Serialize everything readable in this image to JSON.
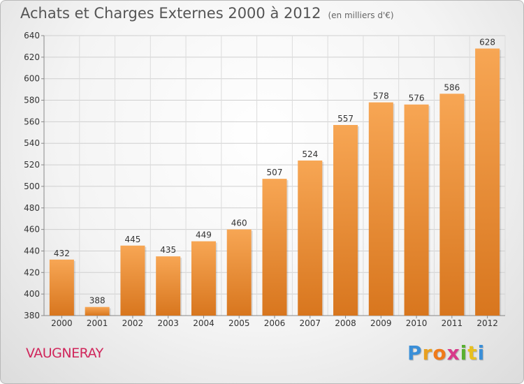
{
  "chart_data": {
    "type": "bar",
    "title": "Achats et Charges Externes 2000 à 2012",
    "subtitle": "(en milliers d'€)",
    "categories": [
      "2000",
      "2001",
      "2002",
      "2003",
      "2004",
      "2005",
      "2006",
      "2007",
      "2008",
      "2009",
      "2010",
      "2011",
      "2012"
    ],
    "values": [
      432,
      388,
      445,
      435,
      449,
      460,
      507,
      524,
      557,
      578,
      576,
      586,
      628
    ],
    "ylim": [
      380,
      640
    ],
    "yticks": [
      380,
      400,
      420,
      440,
      460,
      480,
      500,
      520,
      540,
      560,
      580,
      600,
      620,
      640
    ],
    "grid": true,
    "xlabel": "",
    "ylabel": ""
  },
  "commune": "VAUGNERAY",
  "logo": {
    "letters": [
      "P",
      "r",
      "o",
      "x",
      "i",
      "t",
      "i"
    ],
    "colors": [
      "#3a8fd8",
      "#e8a020",
      "#f07a1a",
      "#d83a8a",
      "#58b030",
      "#e8c020",
      "#3a8fd8"
    ]
  },
  "colors": {
    "bar_top": "#f7a654",
    "bar_bottom": "#d8761e",
    "commune": "#d0265b"
  }
}
